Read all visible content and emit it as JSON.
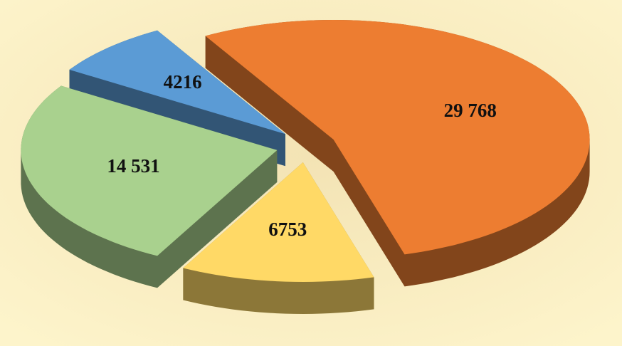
{
  "chart_data": {
    "type": "pie",
    "values": [
      29768,
      6753,
      14531,
      4216
    ],
    "value_labels": [
      "29 768",
      "6753",
      "14 531",
      "4216"
    ],
    "colors": [
      "#ED7D31",
      "#FFD966",
      "#A9D18E",
      "#5B9BD5"
    ]
  }
}
